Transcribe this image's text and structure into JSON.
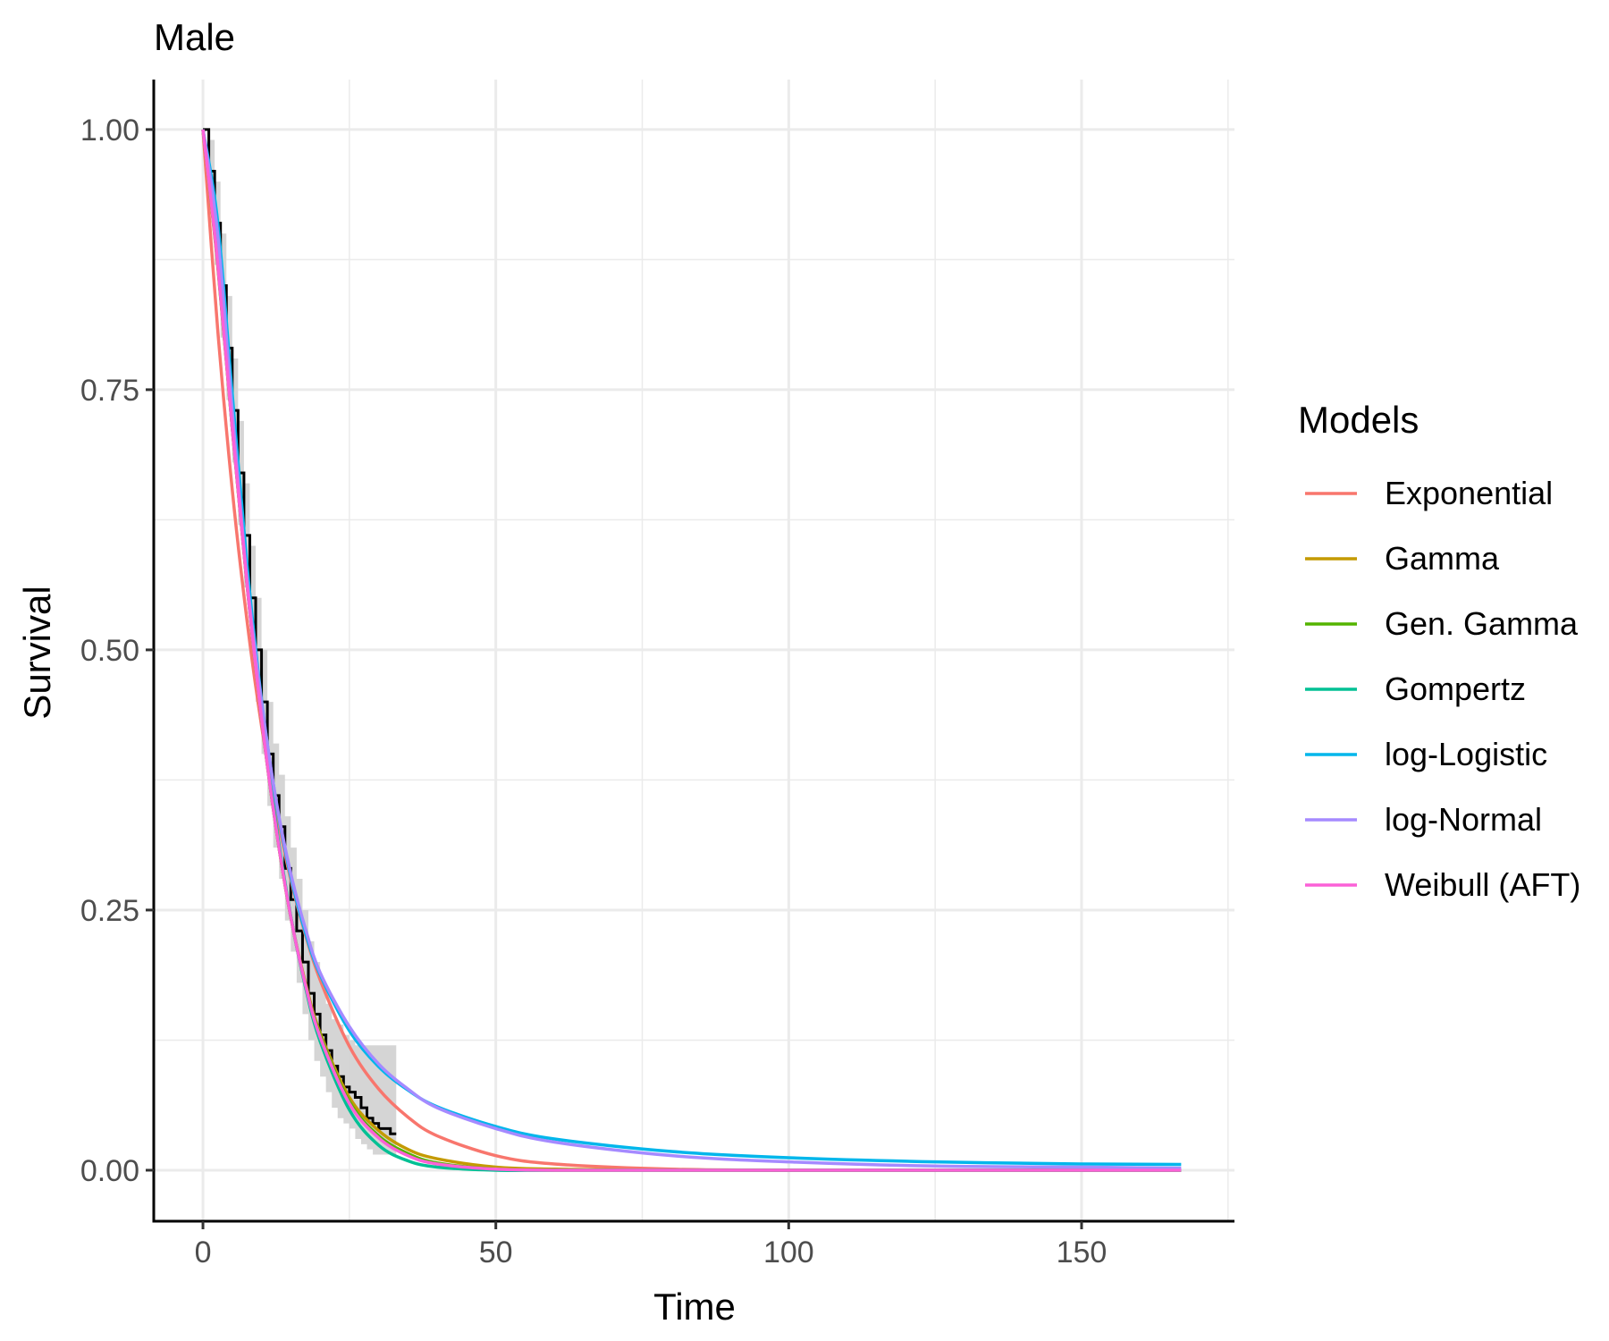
{
  "chart_data": {
    "type": "line",
    "title": "Male",
    "xlabel": "Time",
    "ylabel": "Survival",
    "xlim": [
      -8.4,
      176.1
    ],
    "ylim": [
      -0.049,
      1.048
    ],
    "xticks": [
      0,
      50,
      100,
      150
    ],
    "xtick_labels": [
      "0",
      "50",
      "100",
      "150"
    ],
    "yticks": [
      0,
      0.25,
      0.5,
      0.75,
      1
    ],
    "ytick_labels": [
      "0.00",
      "0.25",
      "0.50",
      "0.75",
      "1.00"
    ],
    "grid": true,
    "legend": {
      "title": "Models",
      "placement": "right"
    },
    "kaplan_meier": {
      "color": "#000000",
      "band_color": "#d3d3d3",
      "time": [
        0,
        1,
        2,
        3,
        4,
        5,
        6,
        7,
        8,
        9,
        10,
        11,
        12,
        13,
        14,
        15,
        16,
        17,
        18,
        19,
        20,
        21,
        22,
        23,
        24,
        25,
        26,
        27,
        28,
        29,
        30,
        31,
        32,
        33
      ],
      "survival": [
        1,
        0.96,
        0.91,
        0.85,
        0.79,
        0.73,
        0.67,
        0.61,
        0.55,
        0.5,
        0.45,
        0.4,
        0.36,
        0.33,
        0.29,
        0.26,
        0.23,
        0.2,
        0.17,
        0.15,
        0.13,
        0.115,
        0.1,
        0.09,
        0.08,
        0.075,
        0.07,
        0.06,
        0.05,
        0.045,
        0.04,
        0.04,
        0.035,
        0.035
      ],
      "upper": [
        1,
        0.99,
        0.95,
        0.9,
        0.84,
        0.78,
        0.72,
        0.66,
        0.6,
        0.55,
        0.5,
        0.45,
        0.41,
        0.38,
        0.34,
        0.31,
        0.28,
        0.25,
        0.22,
        0.2,
        0.18,
        0.16,
        0.145,
        0.14,
        0.13,
        0.125,
        0.12,
        0.12,
        0.12,
        0.12,
        0.12,
        0.12,
        0.12,
        0.12
      ],
      "lower": [
        1,
        0.93,
        0.87,
        0.8,
        0.74,
        0.68,
        0.62,
        0.56,
        0.5,
        0.45,
        0.4,
        0.35,
        0.31,
        0.28,
        0.24,
        0.21,
        0.18,
        0.15,
        0.125,
        0.105,
        0.09,
        0.075,
        0.06,
        0.05,
        0.045,
        0.04,
        0.03,
        0.025,
        0.02,
        0.015,
        0.015,
        0.015,
        0.015,
        0.015
      ]
    },
    "x": [
      0,
      2.5,
      5,
      7.5,
      10,
      12.5,
      15,
      17.5,
      20,
      25,
      30,
      35,
      40,
      50,
      60,
      80,
      100,
      125,
      150,
      167
    ],
    "series": [
      {
        "name": "Exponential",
        "color": "#F8766D",
        "values": [
          1,
          0.809,
          0.654,
          0.529,
          0.427,
          0.346,
          0.279,
          0.226,
          0.183,
          0.119,
          0.078,
          0.051,
          0.033,
          0.014,
          0.006,
          0.001,
          0,
          0,
          0,
          0
        ]
      },
      {
        "name": "Gamma",
        "color": "#C49A00",
        "values": [
          1,
          0.87,
          0.713,
          0.564,
          0.434,
          0.328,
          0.243,
          0.18,
          0.132,
          0.07,
          0.038,
          0.02,
          0.011,
          0.003,
          0.001,
          0,
          0,
          0,
          0,
          0
        ]
      },
      {
        "name": "Gen. Gamma",
        "color": "#53B400",
        "values": [
          1,
          0.872,
          0.713,
          0.564,
          0.434,
          0.328,
          0.243,
          0.178,
          0.13,
          0.066,
          0.033,
          0.016,
          0.007,
          0.001,
          0,
          0,
          0,
          0,
          0,
          0
        ]
      },
      {
        "name": "Gompertz",
        "color": "#00C094",
        "values": [
          1,
          0.88,
          0.72,
          0.57,
          0.44,
          0.332,
          0.244,
          0.176,
          0.124,
          0.058,
          0.024,
          0.009,
          0.003,
          0,
          0,
          0,
          0,
          0,
          0,
          0
        ]
      },
      {
        "name": "log-Logistic",
        "color": "#00B6EB",
        "values": [
          1,
          0.912,
          0.746,
          0.583,
          0.452,
          0.354,
          0.282,
          0.228,
          0.188,
          0.134,
          0.0995,
          0.077,
          0.061,
          0.042,
          0.03,
          0.018,
          0.012,
          0.008,
          0.006,
          0.0055
        ]
      },
      {
        "name": "log-Normal",
        "color": "#A58AFF",
        "values": [
          1,
          0.9,
          0.73,
          0.57,
          0.45,
          0.355,
          0.285,
          0.232,
          0.19,
          0.138,
          0.102,
          0.078,
          0.06,
          0.04,
          0.027,
          0.014,
          0.008,
          0.004,
          0.003,
          0.002
        ]
      },
      {
        "name": "Weibull (AFT)",
        "color": "#FB61D7",
        "values": [
          1,
          0.872,
          0.713,
          0.564,
          0.434,
          0.328,
          0.243,
          0.178,
          0.128,
          0.064,
          0.031,
          0.014,
          0.006,
          0.001,
          0,
          0,
          0,
          0,
          0,
          0
        ]
      }
    ]
  }
}
